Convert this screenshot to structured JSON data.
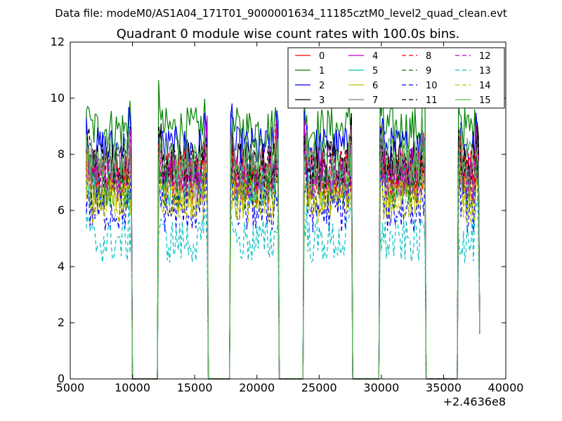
{
  "file_label": "Data file: modeM0/AS1A04_171T01_9000001634_11185cztM0_level2_quad_clean.evt",
  "chart_data": {
    "type": "line",
    "title": "Quadrant 0 module wise count rates with 100.0s bins.",
    "xlabel": "",
    "ylabel": "",
    "x_offset_label": "+2.4636e8",
    "xlim": [
      5000,
      40000
    ],
    "ylim": [
      0,
      12
    ],
    "x_ticks": [
      "5000",
      "10000",
      "15000",
      "20000",
      "25000",
      "30000",
      "35000",
      "40000"
    ],
    "y_ticks": [
      "0",
      "2",
      "4",
      "6",
      "8",
      "10",
      "12"
    ],
    "grid": false,
    "legend_position": "top-right",
    "legend_columns": 4,
    "active_intervals": [
      [
        6300,
        9900
      ],
      [
        12100,
        16000
      ],
      [
        17900,
        21700
      ],
      [
        23800,
        27600
      ],
      [
        29900,
        33500
      ],
      [
        36200,
        37800
      ]
    ],
    "gap_level": 0,
    "series": [
      {
        "name": "0",
        "mean": 7.0,
        "color": "#ff0000",
        "dash": "solid"
      },
      {
        "name": "1",
        "mean": 8.9,
        "color": "#008000",
        "dash": "solid"
      },
      {
        "name": "2",
        "mean": 8.2,
        "color": "#0000ff",
        "dash": "solid"
      },
      {
        "name": "3",
        "mean": 7.7,
        "color": "#000000",
        "dash": "solid"
      },
      {
        "name": "4",
        "mean": 7.5,
        "color": "#bf00bf",
        "dash": "solid"
      },
      {
        "name": "5",
        "mean": 6.9,
        "color": "#00bfbf",
        "dash": "solid"
      },
      {
        "name": "6",
        "mean": 6.5,
        "color": "#bfbf00",
        "dash": "solid"
      },
      {
        "name": "7",
        "mean": 7.2,
        "color": "#808080",
        "dash": "solid"
      },
      {
        "name": "8",
        "mean": 7.4,
        "color": "#ff0000",
        "dash": "dashed"
      },
      {
        "name": "9",
        "mean": 6.8,
        "color": "#008000",
        "dash": "dashed"
      },
      {
        "name": "10",
        "mean": 6.0,
        "color": "#0000ff",
        "dash": "dashed"
      },
      {
        "name": "11",
        "mean": 7.6,
        "color": "#000000",
        "dash": "dashed"
      },
      {
        "name": "12",
        "mean": 7.1,
        "color": "#bf00bf",
        "dash": "dashed"
      },
      {
        "name": "13",
        "mean": 4.9,
        "color": "#00bfbf",
        "dash": "dashed"
      },
      {
        "name": "14",
        "mean": 6.3,
        "color": "#bfbf00",
        "dash": "dashed"
      },
      {
        "name": "15",
        "mean": 7.8,
        "color": "#5cb85c",
        "dash": "solid"
      }
    ]
  }
}
